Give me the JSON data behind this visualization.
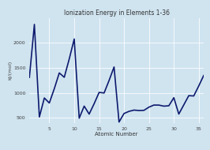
{
  "title": "Ionization Energy in Elements 1-36",
  "xlabel": "Atomic Number",
  "ylabel": "kJ/(mol)",
  "background_color": "#d0e4f0",
  "plot_bg_color": "#d0e4f0",
  "line_color": "#0d1a6e",
  "line_width": 1.2,
  "xlim": [
    1,
    36
  ],
  "ylim": [
    400,
    2500
  ],
  "xticks": [
    5,
    10,
    15,
    20,
    25,
    30,
    35
  ],
  "yticks": [
    500,
    1000,
    1500,
    2000
  ],
  "atomic_numbers": [
    1,
    2,
    3,
    4,
    5,
    6,
    7,
    8,
    9,
    10,
    11,
    12,
    13,
    14,
    15,
    16,
    17,
    18,
    19,
    20,
    21,
    22,
    23,
    24,
    25,
    26,
    27,
    28,
    29,
    30,
    31,
    32,
    33,
    34,
    35,
    36
  ],
  "ionization_energies": [
    1312,
    2372,
    520,
    900,
    800,
    1086,
    1402,
    1314,
    1681,
    2081,
    496,
    738,
    578,
    786,
    1012,
    1000,
    1251,
    1521,
    419,
    590,
    633,
    658,
    650,
    653,
    717,
    759,
    758,
    737,
    745,
    906,
    579,
    762,
    947,
    941,
    1140,
    1351
  ]
}
